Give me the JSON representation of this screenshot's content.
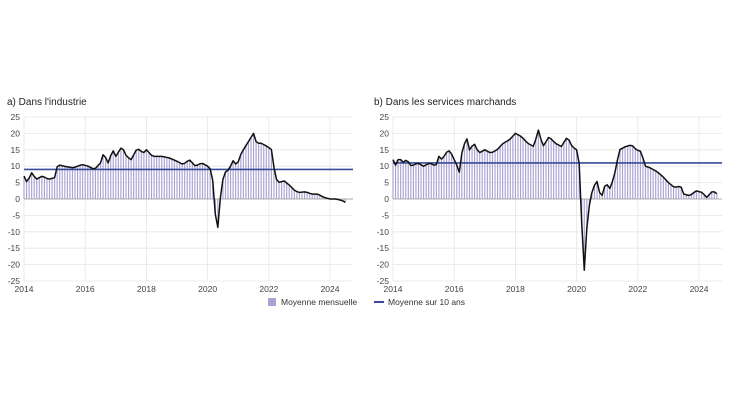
{
  "legend": {
    "bars_label": "Moyenne mensuelle",
    "line_label": "Moyenne sur 10 ans"
  },
  "colors": {
    "bars": "#a9a3d4",
    "line": "#111111",
    "average": "#3a4a9a",
    "grid": "#e6e6e6",
    "axis": "#999999"
  },
  "chart_data": [
    {
      "type": "bar",
      "title": "a) Dans l'industrie",
      "xlabel": "",
      "ylabel": "",
      "ylim": [
        -25,
        25
      ],
      "yticks": [
        25,
        20,
        15,
        10,
        5,
        0,
        -5,
        -10,
        -15,
        -20,
        -25
      ],
      "xlim": [
        2014,
        2024.75
      ],
      "xticks": [
        "2014",
        "2016",
        "2018",
        "2020",
        "2022",
        "2024"
      ],
      "ten_year_average": 9,
      "grid": true,
      "anchors": [
        [
          2014.0,
          7
        ],
        [
          2014.1,
          5
        ],
        [
          2014.25,
          8
        ],
        [
          2014.4,
          6
        ],
        [
          2014.6,
          7
        ],
        [
          2014.8,
          6
        ],
        [
          2015.0,
          6.5
        ],
        [
          2015.1,
          10.5
        ],
        [
          2015.3,
          10
        ],
        [
          2015.6,
          9.5
        ],
        [
          2015.9,
          10.5
        ],
        [
          2016.1,
          10
        ],
        [
          2016.3,
          9
        ],
        [
          2016.5,
          11
        ],
        [
          2016.6,
          14
        ],
        [
          2016.75,
          11
        ],
        [
          2016.9,
          15
        ],
        [
          2017.0,
          13
        ],
        [
          2017.2,
          16
        ],
        [
          2017.35,
          13
        ],
        [
          2017.5,
          12
        ],
        [
          2017.7,
          15.5
        ],
        [
          2017.9,
          14
        ],
        [
          2018.0,
          15
        ],
        [
          2018.2,
          13
        ],
        [
          2018.5,
          13
        ],
        [
          2018.75,
          12.5
        ],
        [
          2019.0,
          11.5
        ],
        [
          2019.2,
          10.5
        ],
        [
          2019.4,
          12
        ],
        [
          2019.6,
          10
        ],
        [
          2019.8,
          11
        ],
        [
          2020.0,
          10
        ],
        [
          2020.1,
          9
        ],
        [
          2020.2,
          4
        ],
        [
          2020.27,
          -8
        ],
        [
          2020.33,
          -9
        ],
        [
          2020.45,
          4
        ],
        [
          2020.55,
          8
        ],
        [
          2020.7,
          9
        ],
        [
          2020.85,
          12
        ],
        [
          2020.95,
          10
        ],
        [
          2021.1,
          14
        ],
        [
          2021.3,
          17
        ],
        [
          2021.5,
          20
        ],
        [
          2021.6,
          17
        ],
        [
          2021.75,
          17
        ],
        [
          2021.95,
          16
        ],
        [
          2022.1,
          15
        ],
        [
          2022.2,
          7
        ],
        [
          2022.3,
          5
        ],
        [
          2022.5,
          5.5
        ],
        [
          2022.7,
          4
        ],
        [
          2022.85,
          2.5
        ],
        [
          2023.0,
          2
        ],
        [
          2023.2,
          2.2
        ],
        [
          2023.4,
          1.5
        ],
        [
          2023.6,
          1.5
        ],
        [
          2023.8,
          0.5
        ],
        [
          2024.0,
          0
        ],
        [
          2024.2,
          0
        ],
        [
          2024.4,
          -0.5
        ],
        [
          2024.5,
          -1
        ]
      ]
    },
    {
      "type": "bar",
      "title": "b) Dans les services marchands",
      "xlabel": "",
      "ylabel": "",
      "ylim": [
        -25,
        25
      ],
      "yticks": [
        25,
        20,
        15,
        10,
        5,
        0,
        -5,
        -10,
        -15,
        -20,
        -25
      ],
      "xlim": [
        2014,
        2024.75
      ],
      "xticks": [
        "2014",
        "2016",
        "2018",
        "2020",
        "2022",
        "2024"
      ],
      "ten_year_average": 11,
      "grid": true,
      "anchors": [
        [
          2014.0,
          12
        ],
        [
          2014.1,
          10
        ],
        [
          2014.2,
          13
        ],
        [
          2014.3,
          11
        ],
        [
          2014.45,
          12
        ],
        [
          2014.6,
          10
        ],
        [
          2014.8,
          11
        ],
        [
          2015.0,
          10
        ],
        [
          2015.2,
          11
        ],
        [
          2015.4,
          10
        ],
        [
          2015.5,
          13
        ],
        [
          2015.6,
          12
        ],
        [
          2015.8,
          15
        ],
        [
          2015.9,
          14
        ],
        [
          2016.1,
          10
        ],
        [
          2016.15,
          7
        ],
        [
          2016.25,
          14
        ],
        [
          2016.4,
          19
        ],
        [
          2016.5,
          15
        ],
        [
          2016.65,
          17
        ],
        [
          2016.8,
          14
        ],
        [
          2017.0,
          15
        ],
        [
          2017.2,
          14
        ],
        [
          2017.4,
          15
        ],
        [
          2017.6,
          17
        ],
        [
          2017.8,
          18
        ],
        [
          2018.0,
          20
        ],
        [
          2018.2,
          19
        ],
        [
          2018.4,
          17
        ],
        [
          2018.6,
          16
        ],
        [
          2018.75,
          21
        ],
        [
          2018.9,
          16
        ],
        [
          2019.1,
          19
        ],
        [
          2019.3,
          17
        ],
        [
          2019.5,
          16
        ],
        [
          2019.7,
          19
        ],
        [
          2019.85,
          16
        ],
        [
          2020.0,
          15
        ],
        [
          2020.1,
          10
        ],
        [
          2020.2,
          -16
        ],
        [
          2020.27,
          -24
        ],
        [
          2020.35,
          -5
        ],
        [
          2020.5,
          2
        ],
        [
          2020.65,
          6
        ],
        [
          2020.8,
          0
        ],
        [
          2020.95,
          5
        ],
        [
          2021.1,
          3
        ],
        [
          2021.25,
          8
        ],
        [
          2021.4,
          15
        ],
        [
          2021.6,
          16
        ],
        [
          2021.8,
          16.5
        ],
        [
          2021.95,
          15
        ],
        [
          2022.1,
          14.5
        ],
        [
          2022.25,
          10
        ],
        [
          2022.4,
          9.5
        ],
        [
          2022.6,
          8.5
        ],
        [
          2022.8,
          7
        ],
        [
          2023.0,
          5
        ],
        [
          2023.2,
          3.5
        ],
        [
          2023.4,
          4
        ],
        [
          2023.5,
          1.5
        ],
        [
          2023.7,
          1
        ],
        [
          2023.9,
          2.5
        ],
        [
          2024.1,
          2
        ],
        [
          2024.25,
          0.5
        ],
        [
          2024.45,
          2.5
        ],
        [
          2024.6,
          1.5
        ]
      ]
    }
  ]
}
